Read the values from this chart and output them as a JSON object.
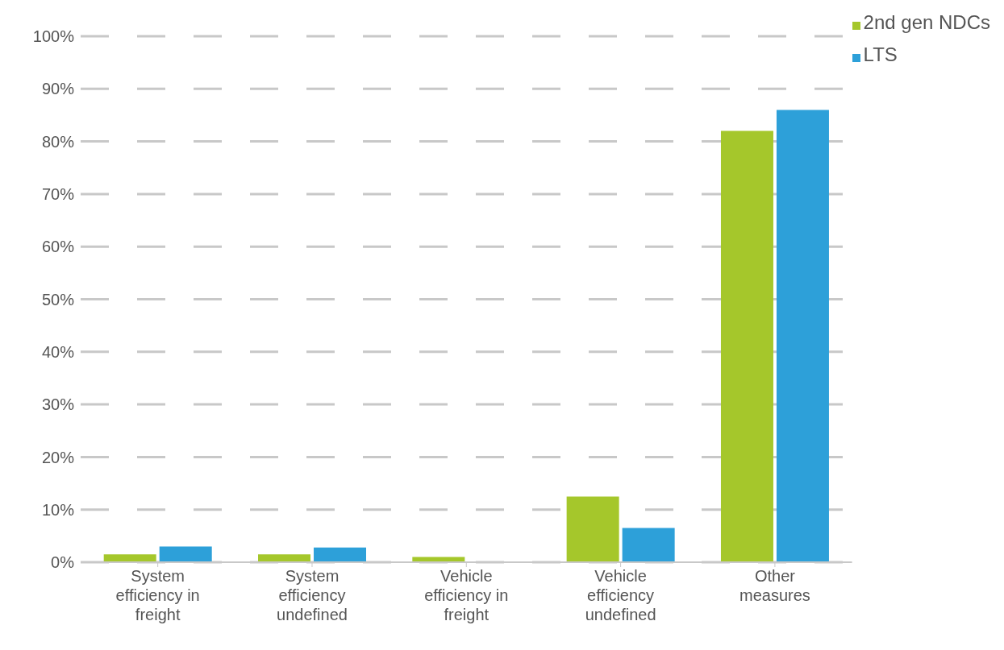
{
  "chart_data": {
    "type": "bar",
    "categories": [
      "System efficiency in freight",
      "System efficiency undefined",
      "Vehicle efficiency in freight",
      "Vehicle efficiency undefined",
      "Other measures"
    ],
    "series": [
      {
        "name": "2nd gen NDCs",
        "color": "#a5c72b",
        "values": [
          1.5,
          1.5,
          1,
          12.5,
          82
        ]
      },
      {
        "name": "LTS",
        "color": "#2da0d9",
        "values": [
          3,
          2.8,
          0,
          6.5,
          86
        ]
      }
    ],
    "ylim": [
      0,
      100
    ],
    "yticks": [
      {
        "value": 0,
        "label": "0%"
      },
      {
        "value": 10,
        "label": "10%"
      },
      {
        "value": 20,
        "label": "20%"
      },
      {
        "value": 30,
        "label": "30%"
      },
      {
        "value": 40,
        "label": "40%"
      },
      {
        "value": 50,
        "label": "50%"
      },
      {
        "value": 60,
        "label": "60%"
      },
      {
        "value": 70,
        "label": "70%"
      },
      {
        "value": 80,
        "label": "80%"
      },
      {
        "value": 90,
        "label": "90%"
      },
      {
        "value": 100,
        "label": "100%"
      }
    ],
    "grid": "y",
    "legend": "top right"
  }
}
